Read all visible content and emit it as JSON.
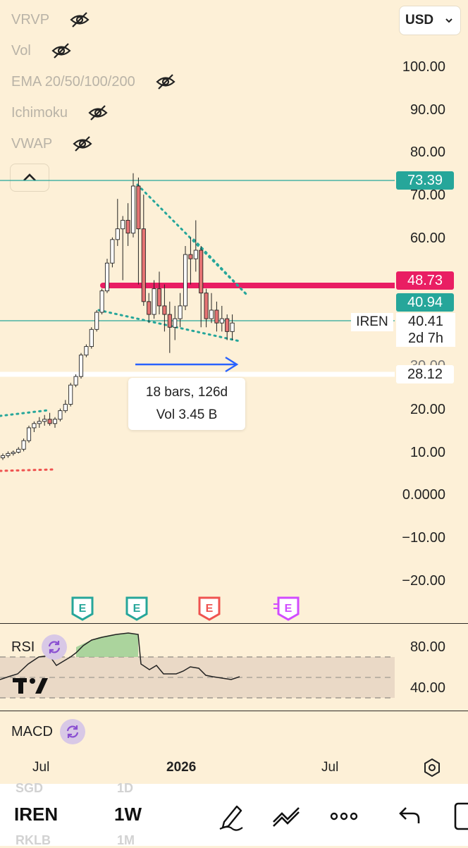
{
  "indicators": [
    "VRVP",
    "Vol",
    "EMA 20/50/100/200",
    "Ichimoku",
    "VWAP"
  ],
  "currency": "USD",
  "price_axis": [
    "100.00",
    "90.00",
    "80.00",
    "70.00",
    "60.00",
    "30.00",
    "20.00",
    "10.00",
    "0.0000",
    "−10.00",
    "−20.00"
  ],
  "price_labels": {
    "level_top": "73.39",
    "level_red": "48.73",
    "level_teal": "40.94",
    "ticker": "IREN",
    "last_price": "40.41",
    "countdown": "2d 7h",
    "level_white": "28.12"
  },
  "colors": {
    "up": "#26a69a",
    "down": "#ef5350",
    "red_line": "#e91e63",
    "teal_badge": "#26a69a",
    "arrow": "#2962ff"
  },
  "measure": {
    "line1": "18 bars, 126d",
    "line2": "Vol 3.45 B"
  },
  "earnings_icons": [
    "E",
    "E",
    "E",
    "E"
  ],
  "rsi": {
    "label": "RSI",
    "axis": [
      "80.00",
      "40.00"
    ]
  },
  "macd": {
    "label": "MACD"
  },
  "time_axis": [
    "Jul",
    "2026",
    "Jul"
  ],
  "toolbar": {
    "symbol": "IREN",
    "interval": "1W",
    "symbol_prev": "SGD",
    "symbol_next": "RKLB",
    "interval_prev": "1D",
    "interval_next": "1M",
    "icons": [
      "draw-pen-icon",
      "indicators-icon",
      "more-icon",
      "undo-icon",
      "layout-icon"
    ]
  }
}
